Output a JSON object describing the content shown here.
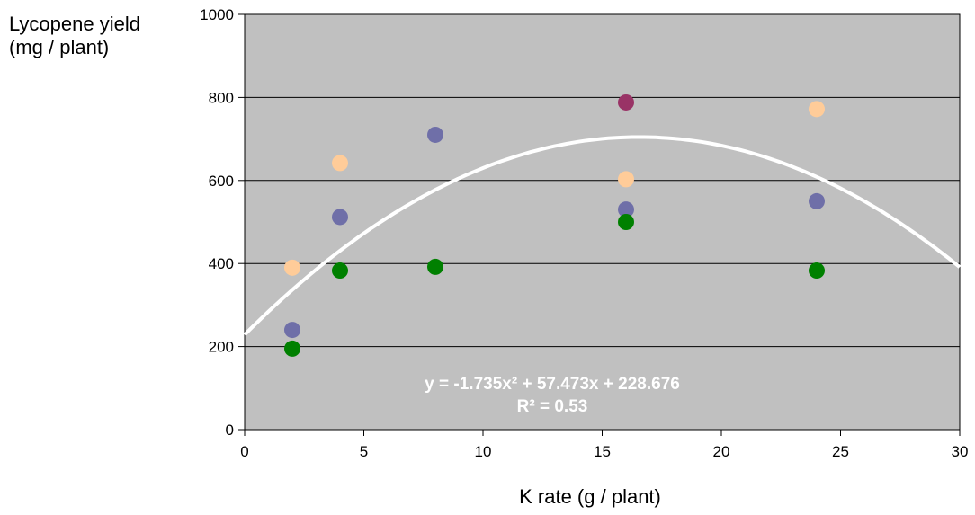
{
  "chart_data": {
    "type": "scatter",
    "xlabel": "K rate (g / plant)",
    "ylabel_line1": "Lycopene yield",
    "ylabel_line2": "(mg / plant)",
    "xlim": [
      0,
      30
    ],
    "ylim": [
      0,
      1000
    ],
    "xticks": [
      "0",
      "5",
      "10",
      "15",
      "20",
      "25",
      "30"
    ],
    "yticks": [
      "0",
      "200",
      "400",
      "600",
      "800",
      "1000"
    ],
    "grid": "horizontal",
    "background_color": "#c0c0c0",
    "series": [
      {
        "color": "#ffcc99",
        "points": [
          [
            2,
            390
          ],
          [
            4,
            642
          ],
          [
            16,
            603
          ],
          [
            24,
            772
          ]
        ]
      },
      {
        "color": "#6f6fa8",
        "points": [
          [
            2,
            240
          ],
          [
            4,
            512
          ],
          [
            8,
            710
          ],
          [
            16,
            530
          ],
          [
            24,
            550
          ]
        ]
      },
      {
        "color": "#008000",
        "points": [
          [
            2,
            195
          ],
          [
            4,
            383
          ],
          [
            8,
            392
          ],
          [
            16,
            500
          ],
          [
            24,
            383
          ]
        ]
      },
      {
        "color": "#993366",
        "points": [
          [
            16,
            788
          ]
        ]
      }
    ],
    "trendline": {
      "type": "polynomial",
      "color": "#ffffff",
      "coefficients": [
        228.676,
        57.473,
        -1.735
      ],
      "equation": "y = -1.735x² + 57.473x + 228.676",
      "r_squared": "R² = 0.53"
    }
  }
}
